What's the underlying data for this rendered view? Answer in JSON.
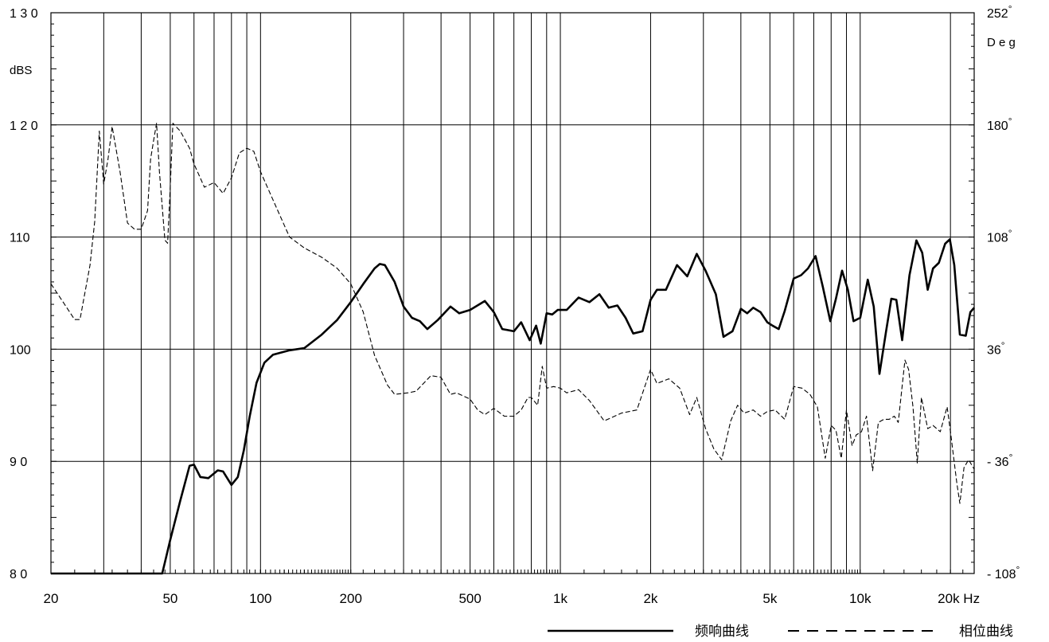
{
  "chart_data": {
    "type": "line",
    "x_scale": "log",
    "xlim": [
      20,
      24000
    ],
    "ylim_left": [
      80,
      130
    ],
    "ylim_right": [
      -108,
      252
    ],
    "grid": true,
    "left_axis": {
      "unit_label": "dBS",
      "ticks": [
        {
          "value": 130,
          "label": "1 3 0"
        },
        {
          "value": 120,
          "label": "1 2 0"
        },
        {
          "value": 110,
          "label": "110"
        },
        {
          "value": 100,
          "label": "100"
        },
        {
          "value": 90,
          "label": "9 0"
        },
        {
          "value": 80,
          "label": "8 0"
        }
      ]
    },
    "right_axis": {
      "unit_label": "D e g",
      "ticks": [
        {
          "value": 252,
          "label": "252°"
        },
        {
          "value": 180,
          "label": "180°"
        },
        {
          "value": 108,
          "label": "108°"
        },
        {
          "value": 36,
          "label": "36°"
        },
        {
          "value": -36,
          "label": "- 36°"
        },
        {
          "value": -108,
          "label": "- 108°"
        }
      ]
    },
    "x_axis": {
      "ticks": [
        {
          "value": 20,
          "label": "20"
        },
        {
          "value": 50,
          "label": "50"
        },
        {
          "value": 100,
          "label": "100"
        },
        {
          "value": 200,
          "label": "200"
        },
        {
          "value": 500,
          "label": "500"
        },
        {
          "value": 1000,
          "label": "1k"
        },
        {
          "value": 2000,
          "label": "2k"
        },
        {
          "value": 5000,
          "label": "5k"
        },
        {
          "value": 10000,
          "label": "10k"
        },
        {
          "value": 20000,
          "label": "20k Hz"
        }
      ],
      "gridlines": [
        30,
        40,
        50,
        60,
        70,
        80,
        90,
        100,
        200,
        300,
        400,
        500,
        600,
        700,
        800,
        900,
        1000,
        2000,
        3000,
        4000,
        5000,
        6000,
        7000,
        8000,
        9000,
        10000,
        20000
      ]
    },
    "legend_position": "bottom-right",
    "series": [
      {
        "name": "频响曲线",
        "style": "solid",
        "color": "#000000",
        "axis": "left",
        "points": [
          [
            20,
            80
          ],
          [
            47,
            80
          ],
          [
            48,
            81
          ],
          [
            50,
            83
          ],
          [
            54,
            86.5
          ],
          [
            58,
            89.6
          ],
          [
            60,
            89.7
          ],
          [
            63,
            88.6
          ],
          [
            67,
            88.5
          ],
          [
            72,
            89.2
          ],
          [
            75,
            89.1
          ],
          [
            80,
            87.9
          ],
          [
            84,
            88.6
          ],
          [
            88,
            91
          ],
          [
            92,
            94
          ],
          [
            97,
            97
          ],
          [
            103,
            98.8
          ],
          [
            110,
            99.5
          ],
          [
            125,
            99.9
          ],
          [
            140,
            100.1
          ],
          [
            160,
            101.3
          ],
          [
            180,
            102.6
          ],
          [
            200,
            104.2
          ],
          [
            220,
            105.8
          ],
          [
            240,
            107.2
          ],
          [
            250,
            107.6
          ],
          [
            260,
            107.5
          ],
          [
            280,
            106
          ],
          [
            300,
            103.8
          ],
          [
            320,
            102.8
          ],
          [
            340,
            102.5
          ],
          [
            360,
            101.8
          ],
          [
            390,
            102.6
          ],
          [
            430,
            103.8
          ],
          [
            460,
            103.2
          ],
          [
            500,
            103.5
          ],
          [
            560,
            104.3
          ],
          [
            600,
            103.3
          ],
          [
            640,
            101.8
          ],
          [
            700,
            101.6
          ],
          [
            740,
            102.4
          ],
          [
            790,
            100.8
          ],
          [
            830,
            102.1
          ],
          [
            860,
            100.5
          ],
          [
            900,
            103.2
          ],
          [
            940,
            103.1
          ],
          [
            980,
            103.5
          ],
          [
            1050,
            103.5
          ],
          [
            1150,
            104.6
          ],
          [
            1250,
            104.2
          ],
          [
            1350,
            104.9
          ],
          [
            1450,
            103.7
          ],
          [
            1550,
            103.9
          ],
          [
            1650,
            102.8
          ],
          [
            1750,
            101.4
          ],
          [
            1880,
            101.6
          ],
          [
            2000,
            104.4
          ],
          [
            2100,
            105.3
          ],
          [
            2250,
            105.3
          ],
          [
            2450,
            107.5
          ],
          [
            2650,
            106.5
          ],
          [
            2850,
            108.5
          ],
          [
            3050,
            107
          ],
          [
            3300,
            104.9
          ],
          [
            3500,
            101.1
          ],
          [
            3750,
            101.6
          ],
          [
            4000,
            103.6
          ],
          [
            4200,
            103.2
          ],
          [
            4400,
            103.7
          ],
          [
            4650,
            103.3
          ],
          [
            4900,
            102.4
          ],
          [
            5100,
            102.1
          ],
          [
            5350,
            101.8
          ],
          [
            5600,
            103.4
          ],
          [
            6000,
            106.3
          ],
          [
            6350,
            106.6
          ],
          [
            6700,
            107.2
          ],
          [
            7100,
            108.3
          ],
          [
            7500,
            105.6
          ],
          [
            7950,
            102.5
          ],
          [
            8300,
            104.5
          ],
          [
            8700,
            107
          ],
          [
            9100,
            105.3
          ],
          [
            9500,
            102.5
          ],
          [
            10000,
            102.8
          ],
          [
            10600,
            106.2
          ],
          [
            11100,
            103.8
          ],
          [
            11600,
            97.8
          ],
          [
            12200,
            101.6
          ],
          [
            12700,
            104.5
          ],
          [
            13200,
            104.4
          ],
          [
            13800,
            100.8
          ],
          [
            14600,
            106.6
          ],
          [
            15400,
            109.7
          ],
          [
            16100,
            108.6
          ],
          [
            16800,
            105.3
          ],
          [
            17500,
            107.2
          ],
          [
            18300,
            107.7
          ],
          [
            19200,
            109.4
          ],
          [
            19900,
            109.8
          ],
          [
            20600,
            107.5
          ],
          [
            21500,
            101.3
          ],
          [
            22500,
            101.2
          ],
          [
            23300,
            103.3
          ],
          [
            24000,
            103.7
          ]
        ]
      },
      {
        "name": "相位曲线",
        "style": "dashed",
        "color": "#000000",
        "axis": "right",
        "points": [
          [
            20,
            78
          ],
          [
            22,
            66
          ],
          [
            24,
            55
          ],
          [
            25,
            55
          ],
          [
            27,
            90
          ],
          [
            28,
            118
          ],
          [
            29,
            176
          ],
          [
            30,
            142
          ],
          [
            31,
            158
          ],
          [
            32,
            179
          ],
          [
            34,
            150
          ],
          [
            36,
            117
          ],
          [
            38,
            113
          ],
          [
            40,
            113
          ],
          [
            42,
            125
          ],
          [
            43,
            158
          ],
          [
            44,
            170
          ],
          [
            45,
            181
          ],
          [
            46,
            150
          ],
          [
            48,
            106
          ],
          [
            49,
            104
          ],
          [
            50,
            140
          ],
          [
            51,
            181
          ],
          [
            54,
            176
          ],
          [
            58,
            165
          ],
          [
            60,
            155
          ],
          [
            65,
            140
          ],
          [
            70,
            143
          ],
          [
            75,
            136
          ],
          [
            80,
            146
          ],
          [
            85,
            162
          ],
          [
            90,
            165
          ],
          [
            95,
            163
          ],
          [
            100,
            150
          ],
          [
            110,
            132
          ],
          [
            125,
            108
          ],
          [
            140,
            101
          ],
          [
            160,
            95
          ],
          [
            180,
            88
          ],
          [
            200,
            78
          ],
          [
            220,
            60
          ],
          [
            240,
            32
          ],
          [
            265,
            13
          ],
          [
            280,
            7
          ],
          [
            310,
            8
          ],
          [
            330,
            9
          ],
          [
            370,
            19
          ],
          [
            400,
            18
          ],
          [
            430,
            7
          ],
          [
            450,
            8
          ],
          [
            500,
            4
          ],
          [
            530,
            -3
          ],
          [
            560,
            -6
          ],
          [
            600,
            -2
          ],
          [
            650,
            -7
          ],
          [
            700,
            -7
          ],
          [
            740,
            -3
          ],
          [
            780,
            5
          ],
          [
            800,
            5
          ],
          [
            840,
            0
          ],
          [
            870,
            25
          ],
          [
            900,
            11
          ],
          [
            950,
            12
          ],
          [
            1000,
            11
          ],
          [
            1050,
            8
          ],
          [
            1150,
            10
          ],
          [
            1250,
            3
          ],
          [
            1400,
            -10
          ],
          [
            1600,
            -5
          ],
          [
            1800,
            -3
          ],
          [
            2000,
            23
          ],
          [
            2100,
            14
          ],
          [
            2300,
            17
          ],
          [
            2500,
            11
          ],
          [
            2700,
            -6
          ],
          [
            2850,
            5
          ],
          [
            3050,
            -15
          ],
          [
            3250,
            -28
          ],
          [
            3450,
            -35
          ],
          [
            3700,
            -10
          ],
          [
            3900,
            0
          ],
          [
            4100,
            -5
          ],
          [
            4400,
            -3
          ],
          [
            4650,
            -7
          ],
          [
            4900,
            -4
          ],
          [
            5200,
            -3
          ],
          [
            5600,
            -9
          ],
          [
            6000,
            12
          ],
          [
            6400,
            11
          ],
          [
            6800,
            7
          ],
          [
            7200,
            -1
          ],
          [
            7650,
            -34
          ],
          [
            8000,
            -13
          ],
          [
            8300,
            -16
          ],
          [
            8650,
            -34
          ],
          [
            9000,
            -3
          ],
          [
            9400,
            -26
          ],
          [
            9700,
            -19
          ],
          [
            10100,
            -17
          ],
          [
            10500,
            -7
          ],
          [
            11000,
            -42
          ],
          [
            11500,
            -11
          ],
          [
            12000,
            -9
          ],
          [
            12500,
            -9
          ],
          [
            13000,
            -7
          ],
          [
            13400,
            -11
          ],
          [
            14100,
            29
          ],
          [
            14500,
            23
          ],
          [
            15000,
            -1
          ],
          [
            15500,
            -37
          ],
          [
            16000,
            5
          ],
          [
            16800,
            -15
          ],
          [
            17500,
            -13
          ],
          [
            18500,
            -17
          ],
          [
            19500,
            -1
          ],
          [
            20000,
            -17
          ],
          [
            21000,
            -50
          ],
          [
            21500,
            -63
          ],
          [
            22200,
            -40
          ],
          [
            23000,
            -35
          ],
          [
            24000,
            -41
          ]
        ]
      }
    ]
  }
}
